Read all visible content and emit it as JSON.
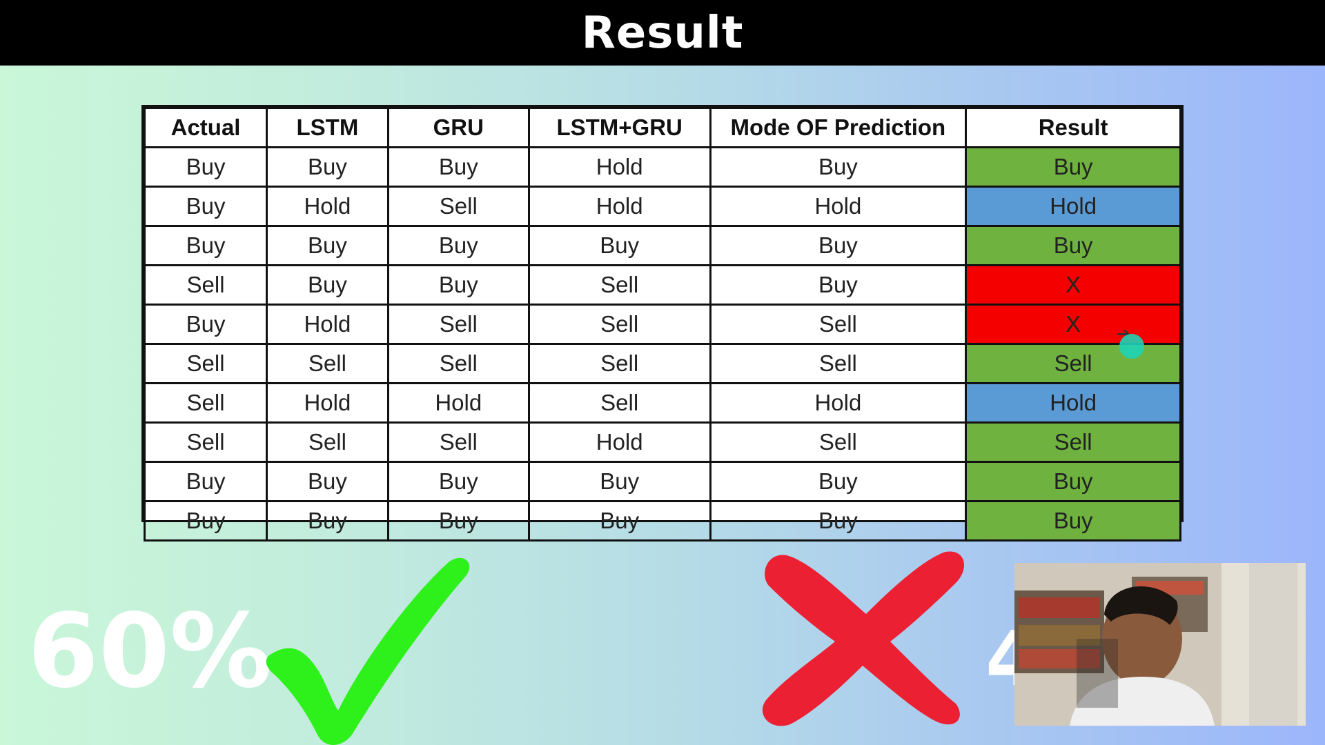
{
  "header": {
    "title": "Result"
  },
  "table": {
    "columns": [
      "Actual",
      "LSTM",
      "GRU",
      "LSTM+GRU",
      "Mode OF Prediction",
      "Result"
    ],
    "rows": [
      [
        "Buy",
        "Buy",
        "Buy",
        "Hold",
        "Buy",
        "Buy"
      ],
      [
        "Buy",
        "Hold",
        "Sell",
        "Hold",
        "Hold",
        "Hold"
      ],
      [
        "Buy",
        "Buy",
        "Buy",
        "Buy",
        "Buy",
        "Buy"
      ],
      [
        "Sell",
        "Buy",
        "Buy",
        "Sell",
        "Buy",
        "X"
      ],
      [
        "Buy",
        "Hold",
        "Sell",
        "Sell",
        "Sell",
        "X"
      ],
      [
        "Sell",
        "Sell",
        "Sell",
        "Sell",
        "Sell",
        "Sell"
      ],
      [
        "Sell",
        "Hold",
        "Hold",
        "Sell",
        "Hold",
        "Hold"
      ],
      [
        "Sell",
        "Sell",
        "Sell",
        "Hold",
        "Sell",
        "Sell"
      ],
      [
        "Buy",
        "Buy",
        "Buy",
        "Buy",
        "Buy",
        "Buy"
      ],
      [
        "Buy",
        "Buy",
        "Buy",
        "Buy",
        "Buy",
        "Buy"
      ]
    ],
    "result_colors": {
      "Buy": "#6fb23f",
      "Sell": "#6fb23f",
      "Hold": "#5b9bd5",
      "X": "#f40000"
    }
  },
  "overlay": {
    "correct_percent": "60%",
    "partial_text": "4",
    "check_icon": "check-mark-icon",
    "cross_icon": "cross-mark-icon",
    "check_color": "#2ef01a",
    "cross_color": "#ec2033"
  },
  "webcam": {
    "icon": "webcam-video-feed"
  }
}
